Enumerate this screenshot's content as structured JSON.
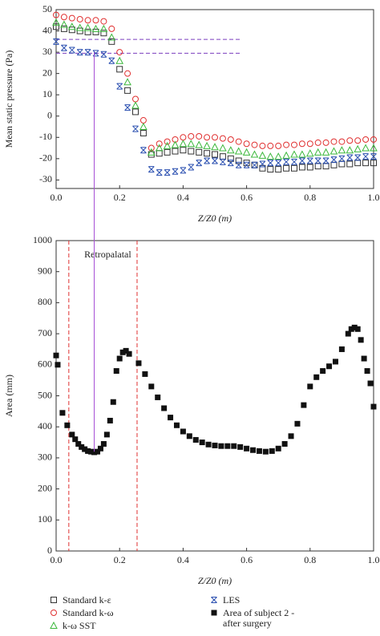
{
  "chart_data": [
    {
      "type": "scatter",
      "ylabel": "Mean static pressure (Pa)",
      "xlabel": "Z/Z0 (m)",
      "xlim": [
        0,
        1
      ],
      "ylim": [
        -34,
        50
      ],
      "xticks": [
        {
          "value": 0,
          "label": "0.0"
        },
        {
          "value": 0.2,
          "label": "0.2"
        },
        {
          "value": 0.4,
          "label": "0.4"
        },
        {
          "value": 0.6,
          "label": "0.6"
        },
        {
          "value": 0.8,
          "label": "0.8"
        },
        {
          "value": 1,
          "label": "1.0"
        }
      ],
      "yticks": [
        50,
        40,
        30,
        20,
        10,
        0,
        -10,
        -20,
        -30
      ],
      "hlines": [
        36,
        29.5
      ],
      "hline_xlim": [
        0,
        0.58
      ],
      "hline_color": "#7b3fbf",
      "x": [
        0,
        0.025,
        0.05,
        0.075,
        0.1,
        0.125,
        0.15,
        0.175,
        0.2,
        0.225,
        0.25,
        0.275,
        0.3,
        0.325,
        0.35,
        0.375,
        0.4,
        0.425,
        0.45,
        0.475,
        0.5,
        0.525,
        0.55,
        0.575,
        0.6,
        0.625,
        0.65,
        0.675,
        0.7,
        0.725,
        0.75,
        0.775,
        0.8,
        0.825,
        0.85,
        0.875,
        0.9,
        0.925,
        0.95,
        0.975,
        1.0
      ],
      "series": [
        {
          "name": "Standard k-ε",
          "color": "#333333",
          "marker": "square",
          "values": [
            42,
            41,
            40.5,
            40,
            39.5,
            39.5,
            39,
            35,
            22,
            12,
            2,
            -8,
            -18,
            -17.5,
            -17,
            -16.5,
            -16,
            -16.5,
            -17,
            -17.5,
            -18,
            -19,
            -20,
            -21,
            -22,
            -23,
            -24.5,
            -25,
            -25,
            -24.5,
            -24.5,
            -24,
            -24,
            -23.5,
            -23.5,
            -23,
            -22.5,
            -22.5,
            -22,
            -22,
            -22
          ]
        },
        {
          "name": "Standard k-ω",
          "color": "#e03030",
          "marker": "circle",
          "values": [
            47.5,
            46.5,
            46,
            45.5,
            45,
            45,
            44.5,
            41,
            30,
            20,
            8,
            -2,
            -15,
            -13,
            -12,
            -11,
            -10,
            -9.5,
            -9.5,
            -10,
            -10,
            -10.5,
            -11,
            -12,
            -13,
            -13.5,
            -14,
            -14,
            -14,
            -13.5,
            -13.5,
            -13,
            -13,
            -12.5,
            -12.5,
            -12,
            -12,
            -11.5,
            -11.5,
            -11,
            -11
          ]
        },
        {
          "name": "k-ω SST",
          "color": "#3cb83c",
          "marker": "triangle",
          "values": [
            44,
            43,
            42,
            41.5,
            41.5,
            41,
            41,
            37,
            26,
            16,
            5,
            -5,
            -17,
            -15,
            -14,
            -13.5,
            -13,
            -13,
            -13.5,
            -14,
            -14.5,
            -15,
            -16,
            -16.5,
            -17,
            -18,
            -18.5,
            -19,
            -19,
            -18.5,
            -18,
            -18,
            -17.5,
            -17,
            -17,
            -16.5,
            -16,
            -16,
            -15.5,
            -15,
            -15
          ]
        },
        {
          "name": "LES",
          "color": "#2a4fb0",
          "marker": "star",
          "values": [
            35,
            32,
            31,
            30,
            30,
            29.5,
            29,
            26,
            14,
            4,
            -6,
            -16,
            -25,
            -26.5,
            -26.5,
            -26,
            -25.5,
            -24,
            -22,
            -21,
            -21,
            -21.5,
            -22,
            -23,
            -23,
            -23,
            -22.5,
            -22,
            -22,
            -21.5,
            -21.5,
            -21,
            -21,
            -21,
            -21,
            -20.5,
            -20,
            -19.5,
            -19.5,
            -19,
            -19
          ]
        }
      ]
    },
    {
      "type": "scatter",
      "ylabel": "Area (mm)",
      "xlabel": "Z/Z0 (m)",
      "xlim": [
        0,
        1
      ],
      "ylim": [
        0,
        1000
      ],
      "xticks": [
        {
          "value": 0,
          "label": "0.0"
        },
        {
          "value": 0.2,
          "label": "0.2"
        },
        {
          "value": 0.4,
          "label": "0.4"
        },
        {
          "value": 0.6,
          "label": "0.6"
        },
        {
          "value": 0.8,
          "label": "0.8"
        },
        {
          "value": 1,
          "label": "1.0"
        }
      ],
      "yticks": [
        0,
        100,
        200,
        300,
        400,
        500,
        600,
        700,
        800,
        900,
        1000
      ],
      "vlines": [
        0.04,
        0.255
      ],
      "vline_color": "#e03030",
      "annotation": "Retropalatal",
      "connector": {
        "x": 0.12,
        "top_y": 30,
        "bottom_y": 320,
        "color": "#a64fd6"
      },
      "x": [
        0,
        0.005,
        0.02,
        0.035,
        0.05,
        0.06,
        0.07,
        0.08,
        0.09,
        0.1,
        0.11,
        0.12,
        0.13,
        0.14,
        0.15,
        0.16,
        0.17,
        0.18,
        0.19,
        0.2,
        0.21,
        0.22,
        0.23,
        0.26,
        0.28,
        0.3,
        0.32,
        0.34,
        0.36,
        0.38,
        0.4,
        0.42,
        0.44,
        0.46,
        0.48,
        0.5,
        0.52,
        0.54,
        0.56,
        0.58,
        0.6,
        0.62,
        0.64,
        0.66,
        0.68,
        0.7,
        0.72,
        0.74,
        0.76,
        0.78,
        0.8,
        0.82,
        0.84,
        0.86,
        0.88,
        0.9,
        0.92,
        0.93,
        0.94,
        0.95,
        0.96,
        0.97,
        0.98,
        0.99,
        1.0
      ],
      "series": [
        {
          "name": "Area of subject 2 -after surgery",
          "color": "#111111",
          "marker": "filled-square",
          "values": [
            630,
            600,
            445,
            405,
            375,
            360,
            345,
            335,
            328,
            322,
            320,
            318,
            320,
            330,
            345,
            375,
            420,
            480,
            580,
            620,
            640,
            645,
            635,
            605,
            570,
            530,
            495,
            460,
            430,
            405,
            385,
            370,
            358,
            350,
            343,
            340,
            338,
            338,
            338,
            335,
            330,
            325,
            322,
            320,
            322,
            330,
            345,
            370,
            410,
            470,
            530,
            560,
            580,
            595,
            610,
            650,
            700,
            715,
            720,
            715,
            680,
            620,
            580,
            540,
            465
          ]
        }
      ]
    }
  ]
}
